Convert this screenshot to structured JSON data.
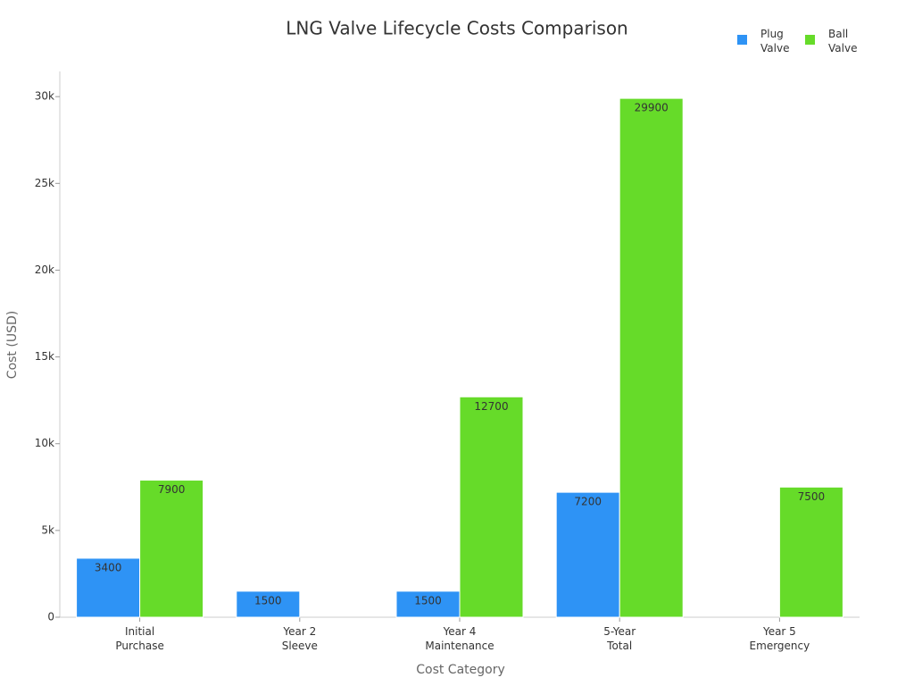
{
  "chart_data": {
    "type": "bar",
    "title": "LNG Valve Lifecycle Costs Comparison",
    "x_label": "Cost Category",
    "y_label": "Cost (USD)",
    "categories": [
      "Initial\nPurchase",
      "Year 2\nSleeve",
      "Year 4\nMaintenance",
      "5-Year\nTotal",
      "Year 5\nEmergency"
    ],
    "series": [
      {
        "name": "Plug\nValve",
        "color": "#2e93f5",
        "values": [
          3400,
          1500,
          1500,
          7200,
          null
        ]
      },
      {
        "name": "Ball\nValve",
        "color": "#66db29",
        "values": [
          7900,
          null,
          12700,
          29900,
          7500
        ]
      }
    ],
    "ylim": [
      0,
      31450
    ],
    "yticks": [
      0,
      {
        "value": 5000,
        "label": "5k"
      },
      {
        "value": 10000,
        "label": "10k"
      },
      {
        "value": 15000,
        "label": "15k"
      },
      {
        "value": 20000,
        "label": "20k"
      },
      {
        "value": 25000,
        "label": "25k"
      },
      {
        "value": 30000,
        "label": "30k"
      }
    ],
    "legend": "top-right"
  }
}
